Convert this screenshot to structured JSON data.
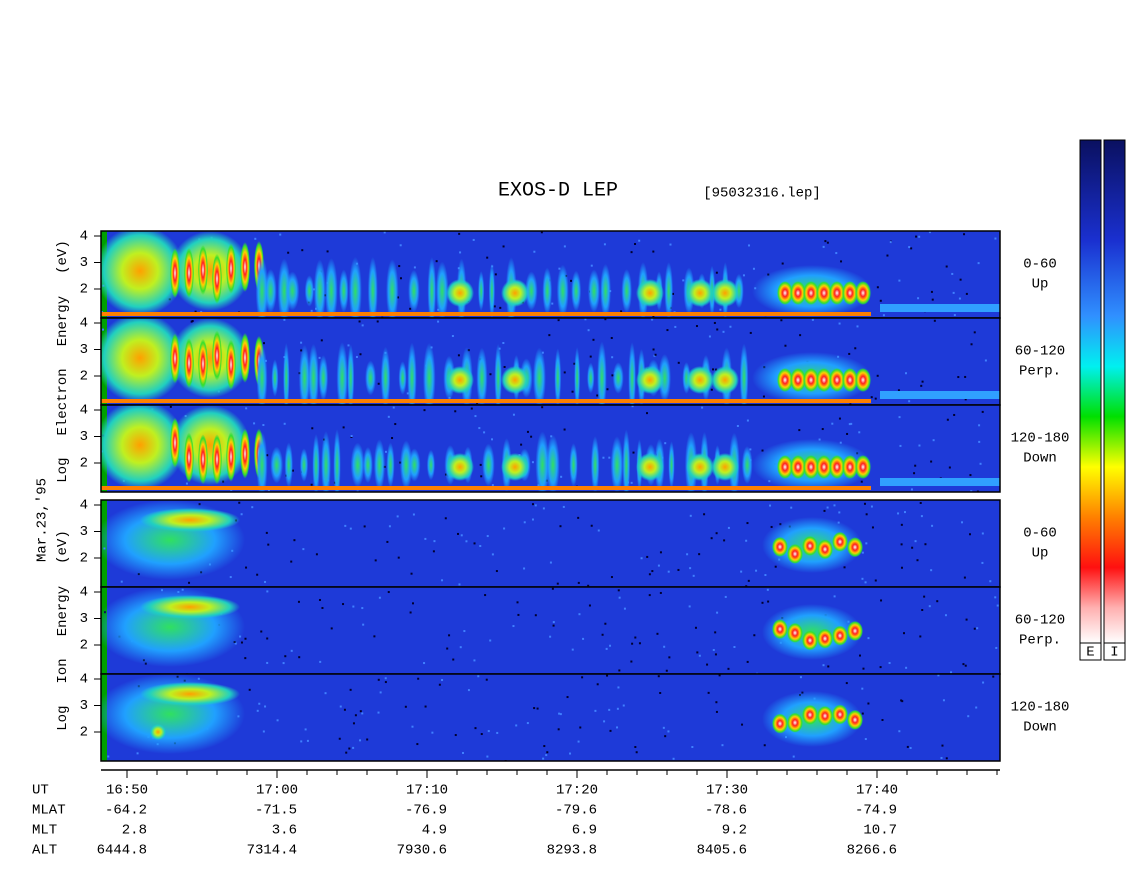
{
  "title": "EXOS-D LEP",
  "file": "[95032316.lep]",
  "date": "Mar.23,'95",
  "electron": {
    "ylabel": [
      "Log",
      "Electron",
      "Energy",
      "(eV)"
    ],
    "panels": [
      {
        "label": [
          "0-60",
          "Up"
        ],
        "yticks": [
          2,
          3,
          4
        ]
      },
      {
        "label": [
          "60-120",
          "Perp."
        ],
        "yticks": [
          2,
          3,
          4
        ]
      },
      {
        "label": [
          "120-180",
          "Down"
        ],
        "yticks": [
          2,
          3,
          4
        ]
      }
    ]
  },
  "ion": {
    "ylabel": [
      "Log",
      "Ion",
      "Energy",
      "(eV)"
    ],
    "panels": [
      {
        "label": [
          "0-60",
          "Up"
        ],
        "yticks": [
          2,
          3,
          4
        ]
      },
      {
        "label": [
          "60-120",
          "Perp."
        ],
        "yticks": [
          2,
          3,
          4
        ]
      },
      {
        "label": [
          "120-180",
          "Down"
        ],
        "yticks": [
          2,
          3,
          4
        ]
      }
    ]
  },
  "time_axis": {
    "rows": [
      "UT",
      "MLAT",
      "MLT",
      "ALT"
    ],
    "UT": [
      "16:50",
      "17:00",
      "17:10",
      "17:20",
      "17:30",
      "17:40"
    ],
    "MLAT": [
      -64.2,
      -71.5,
      -76.9,
      -79.6,
      -78.6,
      -74.9
    ],
    "MLT": [
      2.8,
      3.6,
      4.9,
      6.9,
      9.2,
      10.7
    ],
    "ALT": [
      6444.8,
      7314.4,
      7930.6,
      8293.8,
      8405.6,
      8266.6
    ]
  },
  "colorbars": [
    "E",
    "I"
  ]
}
